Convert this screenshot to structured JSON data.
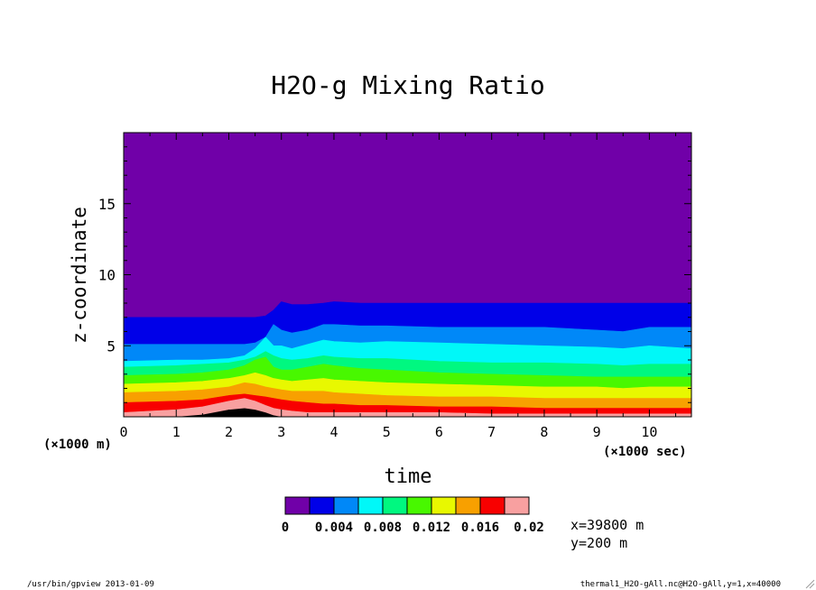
{
  "chart_data": {
    "type": "area",
    "title": "H2O-g Mixing Ratio",
    "xlabel": "time",
    "ylabel": "z-coordinate",
    "x_unit": "(×1000 sec)",
    "y_unit": "(×1000 m)",
    "xlim": [
      0,
      10.8
    ],
    "ylim": [
      0,
      20
    ],
    "x_ticks": [
      0,
      1,
      2,
      3,
      4,
      5,
      6,
      7,
      8,
      9,
      10
    ],
    "y_ticks": [
      5,
      10,
      15
    ],
    "levels": [
      0,
      0.002,
      0.004,
      0.006,
      0.008,
      0.01,
      0.012,
      0.014,
      0.016,
      0.018,
      0.02
    ],
    "colorbar_labels": [
      "0",
      "0.004",
      "0.008",
      "0.012",
      "0.016",
      "0.02"
    ],
    "colors": [
      "#7000a8",
      "#0000e8",
      "#0088f8",
      "#00f8f8",
      "#00f880",
      "#48f800",
      "#e8f800",
      "#f8a000",
      "#f80000",
      "#f8a0a0"
    ],
    "x": [
      0,
      1,
      1.5,
      2,
      2.3,
      2.5,
      2.7,
      2.85,
      3,
      3.2,
      3.5,
      3.8,
      4,
      4.5,
      5,
      6,
      7,
      8,
      9,
      9.5,
      10,
      10.8
    ],
    "contours": [
      {
        "level": 0.002,
        "z": [
          7.0,
          7.0,
          7.0,
          7.0,
          7.0,
          7.0,
          7.1,
          7.5,
          8.1,
          7.9,
          7.9,
          8.0,
          8.1,
          8.0,
          8.0,
          8.0,
          8.0,
          8.0,
          8.0,
          8.0,
          8.0,
          8.0
        ]
      },
      {
        "level": 0.004,
        "z": [
          5.1,
          5.1,
          5.1,
          5.1,
          5.1,
          5.2,
          5.6,
          6.5,
          6.1,
          5.9,
          6.1,
          6.5,
          6.5,
          6.4,
          6.4,
          6.3,
          6.3,
          6.3,
          6.1,
          6.0,
          6.3,
          6.3
        ]
      },
      {
        "level": 0.006,
        "z": [
          3.9,
          4.0,
          4.0,
          4.1,
          4.3,
          4.8,
          5.6,
          5.0,
          5.0,
          4.8,
          5.1,
          5.4,
          5.3,
          5.2,
          5.3,
          5.2,
          5.1,
          5.0,
          4.9,
          4.8,
          5.0,
          4.8
        ]
      },
      {
        "level": 0.008,
        "z": [
          3.5,
          3.6,
          3.7,
          3.8,
          4.0,
          4.2,
          4.6,
          4.3,
          4.1,
          4.0,
          4.1,
          4.3,
          4.2,
          4.1,
          4.1,
          3.9,
          3.8,
          3.8,
          3.7,
          3.6,
          3.7,
          3.7
        ]
      },
      {
        "level": 0.01,
        "z": [
          2.9,
          3.0,
          3.1,
          3.3,
          3.6,
          4.0,
          4.2,
          3.5,
          3.3,
          3.3,
          3.5,
          3.7,
          3.6,
          3.4,
          3.3,
          3.1,
          3.0,
          2.9,
          2.8,
          2.8,
          2.8,
          2.8
        ]
      },
      {
        "level": 0.012,
        "z": [
          2.3,
          2.4,
          2.5,
          2.7,
          2.9,
          3.1,
          2.9,
          2.7,
          2.6,
          2.5,
          2.6,
          2.7,
          2.6,
          2.5,
          2.4,
          2.3,
          2.2,
          2.1,
          2.1,
          2.0,
          2.1,
          2.1
        ]
      },
      {
        "level": 0.014,
        "z": [
          1.7,
          1.8,
          1.9,
          2.1,
          2.4,
          2.3,
          2.1,
          2.0,
          1.9,
          1.8,
          1.8,
          1.8,
          1.7,
          1.6,
          1.5,
          1.4,
          1.4,
          1.3,
          1.3,
          1.3,
          1.3,
          1.3
        ]
      },
      {
        "level": 0.016,
        "z": [
          1.0,
          1.1,
          1.2,
          1.5,
          1.6,
          1.5,
          1.4,
          1.3,
          1.2,
          1.1,
          1.0,
          0.9,
          0.9,
          0.8,
          0.8,
          0.7,
          0.7,
          0.6,
          0.6,
          0.6,
          0.6,
          0.6
        ]
      },
      {
        "level": 0.018,
        "z": [
          0.3,
          0.5,
          0.7,
          1.1,
          1.3,
          1.1,
          0.8,
          0.6,
          0.5,
          0.4,
          0.3,
          0.3,
          0.3,
          0.3,
          0.3,
          0.3,
          0.2,
          0.2,
          0.2,
          0.2,
          0.2,
          0.2
        ]
      },
      {
        "level": 0.02,
        "z": [
          0.0,
          0.0,
          0.15,
          0.5,
          0.6,
          0.5,
          0.3,
          0.1,
          0.0,
          0.0,
          0.0,
          0.0,
          0.0,
          0.0,
          0.0,
          0.0,
          0.0,
          0.0,
          0.0,
          0.0,
          0.0,
          0.0
        ]
      }
    ]
  },
  "info": {
    "x_position": "x=39800 m",
    "y_position": "y=200 m",
    "footer_left": "/usr/bin/gpview  2013-01-09",
    "footer_right": "thermal1_H2O-gAll.nc@H2O-gAll,y=1,x=40000"
  }
}
